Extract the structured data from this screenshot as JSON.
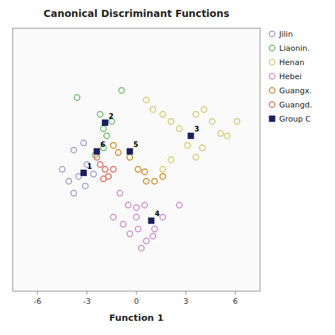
{
  "chart_data": {
    "type": "scatter",
    "title": "Canonical Discriminant Functions",
    "x_label": "Function 1",
    "xlim": [
      -7.5,
      7.5
    ],
    "ylim": [
      -5.5,
      5.5
    ],
    "xticks": [
      -6,
      -3,
      0,
      3,
      6
    ],
    "yticks": [],
    "tick_labels": "x",
    "grid": false,
    "legend": "right",
    "series": [
      {
        "name": "Jilin",
        "color": "#9999cc",
        "marker": "circle-open",
        "x": [
          -4.5,
          -3.8,
          -3.5,
          -3.2,
          -3.0,
          -3.1,
          -2.6,
          -3.8,
          -4.1
        ],
        "values": [
          -0.4,
          0.4,
          -0.7,
          0.7,
          -0.2,
          -1.1,
          -0.6,
          -1.4,
          -0.9
        ]
      },
      {
        "name": "Liaonin.",
        "color": "#66bb66",
        "marker": "circle-open",
        "x": [
          -3.6,
          -2.2,
          -2.0,
          -1.8,
          -2.0,
          -2.5,
          -0.9,
          -1.5
        ],
        "values": [
          2.6,
          1.9,
          1.3,
          1.0,
          0.5,
          0.2,
          2.9,
          1.6
        ]
      },
      {
        "name": "Henan",
        "color": "#d4c870",
        "marker": "circle-open",
        "x": [
          0.6,
          1.0,
          1.6,
          2.1,
          2.6,
          3.6,
          4.1,
          4.6,
          5.1,
          3.1,
          2.1,
          1.6,
          3.6,
          6.1,
          5.5,
          4.0
        ],
        "values": [
          2.5,
          2.1,
          1.9,
          1.6,
          1.3,
          1.9,
          2.1,
          1.6,
          1.1,
          0.6,
          0.0,
          -0.4,
          0.1,
          1.6,
          1.0,
          0.5
        ]
      },
      {
        "name": "Hebei",
        "color": "#cc88cc",
        "marker": "circle-open",
        "x": [
          -1.0,
          -0.5,
          0.0,
          0.5,
          0.1,
          -0.4,
          0.6,
          1.1,
          -1.4,
          1.6,
          2.6,
          0.0,
          -0.8,
          0.3,
          1.0
        ],
        "values": [
          -1.4,
          -1.9,
          -2.4,
          -1.9,
          -2.9,
          -3.1,
          -3.4,
          -2.9,
          -2.4,
          -2.4,
          -1.9,
          -2.0,
          -2.7,
          -3.7,
          -3.2
        ]
      },
      {
        "name": "Guangx.",
        "color": "#cc8822",
        "marker": "circle-open",
        "x": [
          -1.4,
          -1.1,
          -0.4,
          0.1,
          0.6,
          1.1,
          1.6,
          0.5
        ],
        "values": [
          0.6,
          0.3,
          0.1,
          -0.4,
          -0.9,
          -0.9,
          -0.7,
          -0.5
        ]
      },
      {
        "name": "Guangd.",
        "color": "#dd6655",
        "marker": "circle-open",
        "x": [
          -2.4,
          -2.2,
          -1.9,
          -1.7,
          -1.4,
          -2.0
        ],
        "values": [
          0.1,
          -0.2,
          -0.4,
          -0.7,
          -0.4,
          -0.8
        ]
      },
      {
        "name": "Group C",
        "color": "#1a2060",
        "marker": "square",
        "x": [
          -3.2,
          -1.9,
          3.3,
          0.9,
          -0.4,
          -2.4
        ],
        "values": [
          -0.55,
          1.55,
          1.0,
          -2.55,
          0.35,
          0.35
        ],
        "labels": [
          "1",
          "2",
          "3",
          "4",
          "5",
          "6"
        ]
      }
    ]
  }
}
